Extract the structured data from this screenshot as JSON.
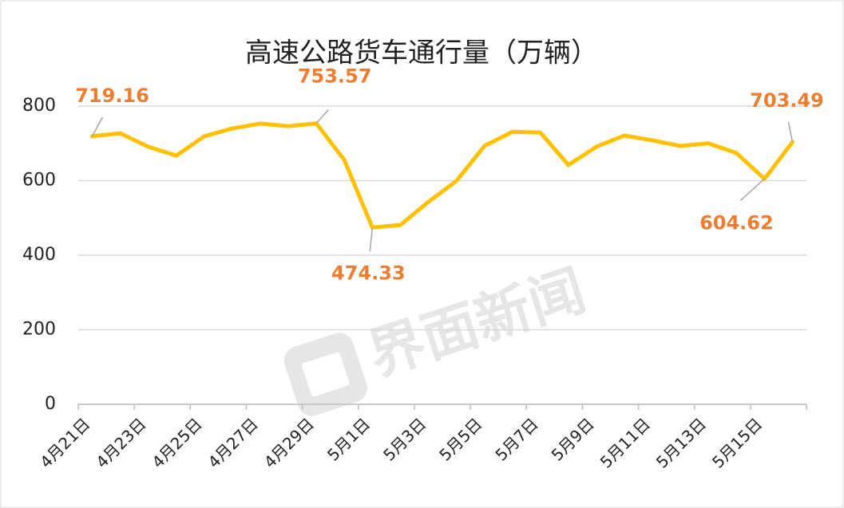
{
  "chart_data": {
    "type": "line",
    "title": "高速公路货车通行量（万辆）",
    "watermark": "界面新闻",
    "categories": [
      "4月21日",
      null,
      "4月23日",
      null,
      "4月25日",
      null,
      "4月27日",
      null,
      "4月29日",
      null,
      "5月1日",
      null,
      "5月3日",
      null,
      "5月5日",
      null,
      "5月7日",
      null,
      "5月9日",
      null,
      "5月11日",
      null,
      "5月13日",
      null,
      "5月15日",
      null
    ],
    "series": [
      {
        "name": "高速公路货车通行量",
        "color": "#FFC000",
        "values": [
          719.16,
          727,
          691,
          667,
          719,
          740,
          753,
          746,
          753.57,
          655,
          474.33,
          481,
          543,
          599,
          693,
          731,
          729,
          642,
          691,
          721,
          708,
          693,
          700,
          674,
          604.62,
          703.49
        ],
        "value_labels": [
          "719.16",
          null,
          null,
          null,
          null,
          null,
          null,
          null,
          "753.57",
          null,
          "474.33",
          null,
          null,
          null,
          null,
          null,
          null,
          null,
          null,
          null,
          null,
          null,
          null,
          null,
          "604.62",
          "703.49"
        ],
        "label_color": "#ED7D31"
      }
    ],
    "ylim": [
      0,
      800
    ],
    "yticks": [
      0,
      200,
      400,
      600,
      800
    ],
    "grid": true
  }
}
